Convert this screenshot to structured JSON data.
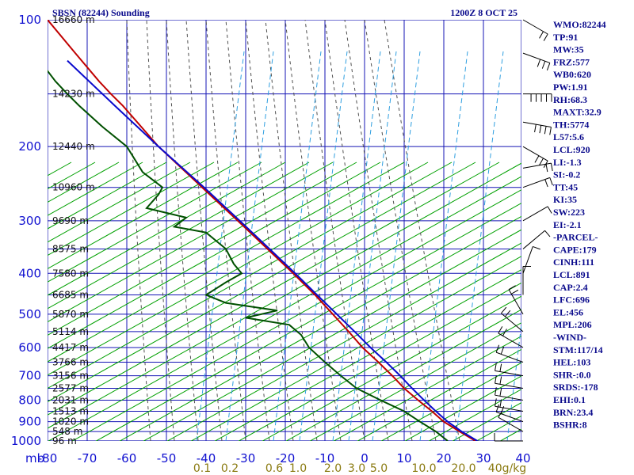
{
  "header": {
    "station": "SBSN (82244) Sounding",
    "datetime": "1200Z  8 OCT 25"
  },
  "axes": {
    "mb_label": "mb",
    "pressure_ticks": [
      "100",
      "200",
      "300",
      "400",
      "500",
      "600",
      "700",
      "800",
      "900",
      "1000"
    ],
    "temperature_ticks": [
      "-80",
      "-70",
      "-60",
      "-50",
      "-40",
      "-30",
      "-20",
      "-10",
      "0",
      "10",
      "20",
      "30",
      "40"
    ],
    "mixing_ratio_ticks": [
      "0.1",
      "0.2",
      "0.6",
      "1.0",
      "2.0",
      "3.0",
      "5.0",
      "10.0",
      "20.0",
      "40g/kg"
    ]
  },
  "heights": [
    {
      "p": 100,
      "label": "16660 m"
    },
    {
      "p": 150,
      "label": "14230 m"
    },
    {
      "p": 200,
      "label": "12440 m"
    },
    {
      "p": 250,
      "label": "10960 m"
    },
    {
      "p": 300,
      "label": "9690 m"
    },
    {
      "p": 350,
      "label": "8575 m"
    },
    {
      "p": 400,
      "label": "7580 m"
    },
    {
      "p": 450,
      "label": "6685 m"
    },
    {
      "p": 500,
      "label": "5870 m"
    },
    {
      "p": 550,
      "label": "5114 m"
    },
    {
      "p": 600,
      "label": "4417 m"
    },
    {
      "p": 650,
      "label": "3766 m"
    },
    {
      "p": 700,
      "label": "3156 m"
    },
    {
      "p": 750,
      "label": "2577 m"
    },
    {
      "p": 800,
      "label": "2031 m"
    },
    {
      "p": 850,
      "label": "1513 m"
    },
    {
      "p": 900,
      "label": "1020 m"
    },
    {
      "p": 950,
      "label": "548 m"
    },
    {
      "p": 1000,
      "label": "96 m"
    }
  ],
  "indices": [
    "WMO:82244",
    "TP:91",
    "MW:35",
    "FRZ:577",
    "WB0:620",
    "PW:1.91",
    "RH:68.3",
    "MAXT:32.9",
    "TH:5774",
    "L57:5.6",
    "LCL:920",
    "LI:-1.3",
    "SI:-0.2",
    "TT:45",
    "KI:35",
    "SW:223",
    "EI:-2.1",
    "-PARCEL-",
    "CAPE:179",
    "CINH:111",
    "LCL:891",
    "CAP:2.4",
    "LFC:696",
    "EL:456",
    "MPL:206",
    "-WIND-",
    "STM:117/14",
    "HEL:103",
    "SHR-:0.0",
    "SRDS:-178",
    "EHI:0.1",
    "BRN:23.4",
    "BSHR:8"
  ],
  "colors": {
    "grid": "#1414b4",
    "dry_adiabat": "#00a000",
    "moist_adiabat": "#505050",
    "mixing_ratio": "#2f9fe0",
    "temperature": "#c00000",
    "dewpoint": "#005000",
    "parcel": "#0a0acd",
    "index_text": "#0a0a8c"
  },
  "chart_data": {
    "type": "line",
    "subtype": "skew-T log-P",
    "title": "SBSN (82244) Sounding",
    "xlabel": "",
    "ylabel": "mb",
    "ylim": [
      1000,
      100
    ],
    "xlim": [
      -80,
      40
    ],
    "series": [
      {
        "values": [
          {
            "p": 1000,
            "t": 28
          },
          {
            "p": 950,
            "t": 24
          },
          {
            "p": 900,
            "t": 20
          },
          {
            "p": 850,
            "t": 17
          },
          {
            "p": 800,
            "t": 13.5
          },
          {
            "p": 750,
            "t": 10
          },
          {
            "p": 700,
            "t": 7
          },
          {
            "p": 650,
            "t": 3.5
          },
          {
            "p": 600,
            "t": -0.5
          },
          {
            "p": 550,
            "t": -4
          },
          {
            "p": 500,
            "t": -8
          },
          {
            "p": 450,
            "t": -12.5
          },
          {
            "p": 400,
            "t": -18
          },
          {
            "p": 350,
            "t": -24.5
          },
          {
            "p": 300,
            "t": -32
          },
          {
            "p": 250,
            "t": -41
          },
          {
            "p": 200,
            "t": -52
          },
          {
            "p": 160,
            "t": -61
          },
          {
            "p": 150,
            "t": -64
          },
          {
            "p": 140,
            "t": -67
          },
          {
            "p": 120,
            "t": -73
          },
          {
            "p": 100,
            "t": -80
          }
        ]
      },
      {
        "values": [
          {
            "p": 1000,
            "t": 21
          },
          {
            "p": 950,
            "t": 18
          },
          {
            "p": 900,
            "t": 14
          },
          {
            "p": 850,
            "t": 10
          },
          {
            "p": 800,
            "t": 4
          },
          {
            "p": 750,
            "t": -2
          },
          {
            "p": 700,
            "t": -6
          },
          {
            "p": 650,
            "t": -10
          },
          {
            "p": 600,
            "t": -14
          },
          {
            "p": 560,
            "t": -16
          },
          {
            "p": 530,
            "t": -19
          },
          {
            "p": 510,
            "t": -30
          },
          {
            "p": 490,
            "t": -22
          },
          {
            "p": 470,
            "t": -35
          },
          {
            "p": 450,
            "t": -40
          },
          {
            "p": 420,
            "t": -35
          },
          {
            "p": 400,
            "t": -31
          },
          {
            "p": 380,
            "t": -33
          },
          {
            "p": 350,
            "t": -35
          },
          {
            "p": 320,
            "t": -40
          },
          {
            "p": 310,
            "t": -48
          },
          {
            "p": 295,
            "t": -45
          },
          {
            "p": 280,
            "t": -55
          },
          {
            "p": 260,
            "t": -52
          },
          {
            "p": 250,
            "t": -51
          },
          {
            "p": 230,
            "t": -56
          },
          {
            "p": 200,
            "t": -60
          },
          {
            "p": 180,
            "t": -66
          },
          {
            "p": 160,
            "t": -72
          },
          {
            "p": 150,
            "t": -75
          },
          {
            "p": 140,
            "t": -78
          },
          {
            "p": 125,
            "t": -82
          }
        ]
      },
      {
        "values": [
          {
            "p": 1000,
            "t": 28.5
          },
          {
            "p": 950,
            "t": 24.5
          },
          {
            "p": 900,
            "t": 21
          },
          {
            "p": 850,
            "t": 18
          },
          {
            "p": 800,
            "t": 15
          },
          {
            "p": 750,
            "t": 12
          },
          {
            "p": 700,
            "t": 9
          },
          {
            "p": 650,
            "t": 5.5
          },
          {
            "p": 600,
            "t": 1.5
          },
          {
            "p": 550,
            "t": -2.5
          },
          {
            "p": 500,
            "t": -7
          },
          {
            "p": 450,
            "t": -12
          },
          {
            "p": 400,
            "t": -17.5
          },
          {
            "p": 350,
            "t": -24
          },
          {
            "p": 300,
            "t": -31.5
          },
          {
            "p": 250,
            "t": -40.5
          },
          {
            "p": 200,
            "t": -52
          },
          {
            "p": 160,
            "t": -63
          },
          {
            "p": 125,
            "t": -75
          }
        ]
      }
    ],
    "wind_barbs": [
      {
        "p": 100,
        "dir": 300,
        "kt": 20
      },
      {
        "p": 120,
        "dir": 290,
        "kt": 30
      },
      {
        "p": 150,
        "dir": 270,
        "kt": 45
      },
      {
        "p": 175,
        "dir": 280,
        "kt": 35
      },
      {
        "p": 200,
        "dir": 300,
        "kt": 25
      },
      {
        "p": 225,
        "dir": 260,
        "kt": 20
      },
      {
        "p": 250,
        "dir": 250,
        "kt": 15
      },
      {
        "p": 300,
        "dir": 240,
        "kt": 10
      },
      {
        "p": 350,
        "dir": 230,
        "kt": 10
      },
      {
        "p": 400,
        "dir": 200,
        "kt": 10
      },
      {
        "p": 450,
        "dir": 180,
        "kt": 10
      },
      {
        "p": 500,
        "dir": 150,
        "kt": 15
      },
      {
        "p": 550,
        "dir": 130,
        "kt": 20
      },
      {
        "p": 600,
        "dir": 120,
        "kt": 20
      },
      {
        "p": 650,
        "dir": 110,
        "kt": 15
      },
      {
        "p": 700,
        "dir": 100,
        "kt": 15
      },
      {
        "p": 750,
        "dir": 100,
        "kt": 15
      },
      {
        "p": 800,
        "dir": 100,
        "kt": 20
      },
      {
        "p": 850,
        "dir": 100,
        "kt": 20
      },
      {
        "p": 900,
        "dir": 110,
        "kt": 15
      },
      {
        "p": 950,
        "dir": 120,
        "kt": 10
      },
      {
        "p": 1000,
        "dir": 90,
        "kt": 5
      }
    ]
  }
}
